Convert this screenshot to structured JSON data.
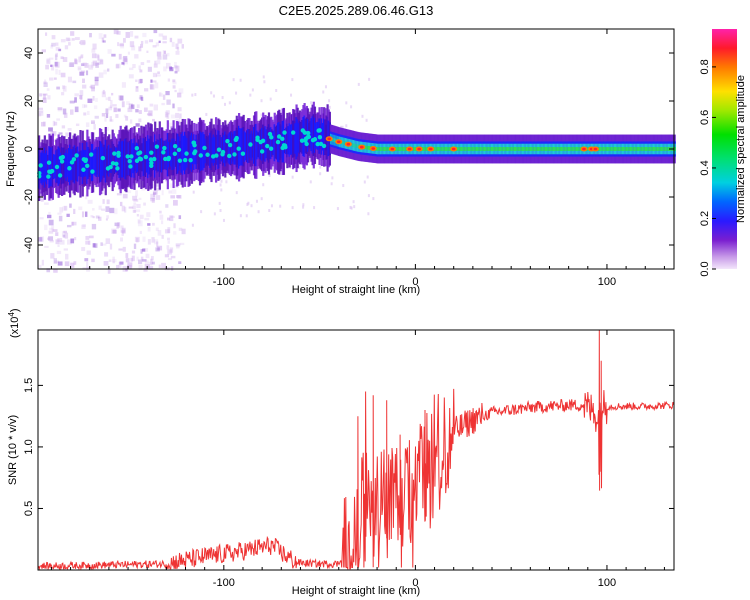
{
  "figure": {
    "title": "C2E5.2025.289.06.46.G13"
  },
  "chart_data": [
    {
      "type": "heatmap",
      "name": "spectrogram",
      "xlabel": "Height of straight line (km)",
      "ylabel": "Frequency (Hz)",
      "xlim": [
        -197,
        135
      ],
      "ylim": [
        -50,
        50
      ],
      "x_ticks": [
        -100,
        0,
        100
      ],
      "x_tick_labels": [
        "-100",
        "0",
        "100"
      ],
      "y_ticks": [
        40,
        20,
        0,
        -20,
        -40
      ],
      "y_tick_labels": [
        "40",
        "20",
        "0",
        "-20",
        "-40"
      ],
      "ridge": {
        "description_points_x": [
          -197,
          -150,
          -100,
          -70,
          -55,
          -48,
          -40,
          -30,
          -20,
          0,
          50,
          100,
          135
        ],
        "description_points_y": [
          -8,
          -4,
          0,
          3,
          6,
          5,
          3,
          1,
          0,
          0,
          0,
          0,
          0
        ]
      },
      "colorbar": {
        "label": "Normalized spectral amplitude",
        "range": [
          0,
          0.95
        ],
        "ticks": [
          0.0,
          0.2,
          0.4,
          0.6,
          0.8
        ],
        "tick_labels": [
          "0.0",
          "0.2",
          "0.4",
          "0.6",
          "0.8"
        ]
      }
    },
    {
      "type": "line",
      "name": "snr",
      "xlabel": "Height of straight line (km)",
      "ylabel": "SNR (10 * v/v)",
      "yscale_label": "(x10",
      "yscale_exp": "4",
      "yscale_close": ")",
      "xlim": [
        -197,
        135
      ],
      "ylim": [
        0,
        1.95
      ],
      "x_ticks": [
        -100,
        0,
        100
      ],
      "x_tick_labels": [
        "-100",
        "0",
        "100"
      ],
      "y_ticks": [
        0.5,
        1.0,
        1.5
      ],
      "y_tick_labels": [
        "0.5",
        "1.0",
        "1.5"
      ],
      "line_color": "#ee3333",
      "series_outline": {
        "x": [
          -197,
          -130,
          -120,
          -105,
          -95,
          -85,
          -75,
          -68,
          -62,
          -50,
          -40,
          -35,
          -30,
          -25,
          -20,
          -15,
          -10,
          -5,
          0,
          5,
          10,
          15,
          20,
          30,
          40,
          50,
          60,
          70,
          80,
          88,
          92,
          95,
          97,
          100,
          110,
          120,
          135
        ],
        "y": [
          0.03,
          0.05,
          0.08,
          0.12,
          0.14,
          0.17,
          0.2,
          0.12,
          0.06,
          0.05,
          0.05,
          0.3,
          0.5,
          0.55,
          0.55,
          0.6,
          0.55,
          0.6,
          0.75,
          0.8,
          1.0,
          1.05,
          1.12,
          1.22,
          1.28,
          1.3,
          1.32,
          1.33,
          1.34,
          1.34,
          1.3,
          1.25,
          1.33,
          1.33,
          1.33,
          1.33,
          1.34
        ]
      },
      "spikes": {
        "x": [
          -30,
          -26,
          -22,
          -15,
          -8,
          5,
          96,
          97
        ],
        "y": [
          1.25,
          1.45,
          1.42,
          1.38,
          1.1,
          1.3,
          1.95,
          1.7
        ]
      }
    }
  ]
}
